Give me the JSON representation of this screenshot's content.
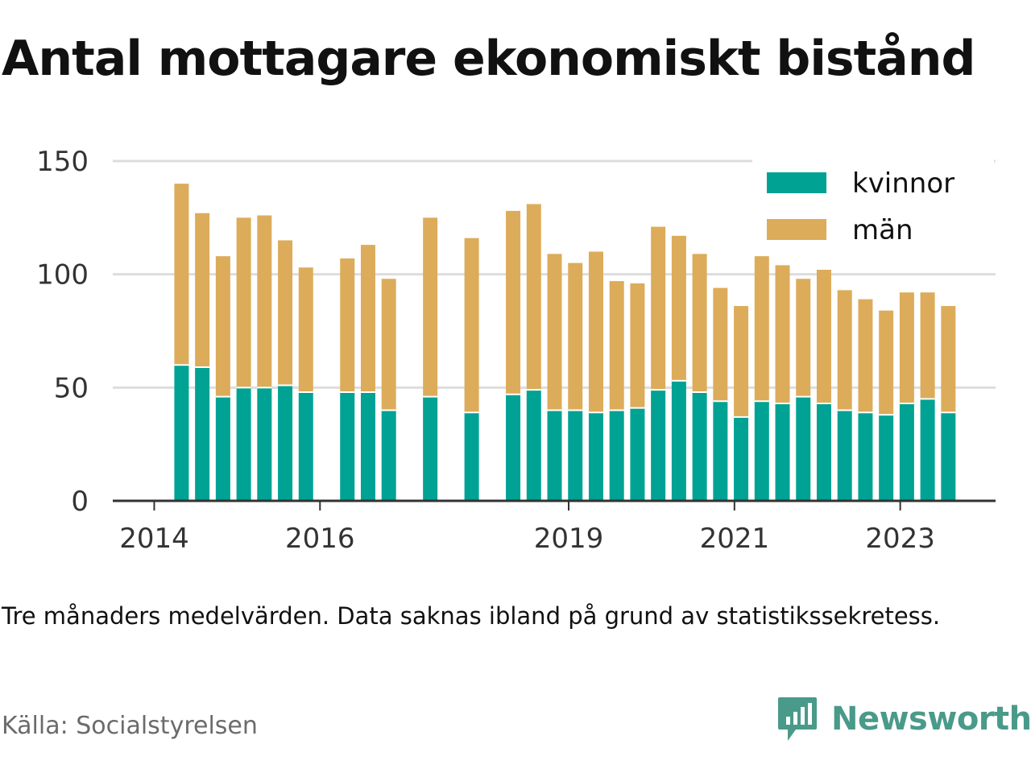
{
  "title": "Antal mottagare ekonomiskt bistånd",
  "note": "Tre månaders medelvärden. Data saknas ibland på grund av statistikssekretess.",
  "source": "Källa: Socialstyrelsen",
  "brand": {
    "name": "Newsworthy",
    "icon": "newsworthy-logo-icon",
    "color": "#4a9a8a"
  },
  "chart_data": {
    "type": "bar",
    "stacked": true,
    "grid": true,
    "legend_position": "top-right",
    "ylim": [
      0,
      150
    ],
    "yticks": [
      0,
      50,
      100,
      150
    ],
    "xticks": [
      {
        "label": "2014",
        "x": 2014.0
      },
      {
        "label": "2016",
        "x": 2016.0
      },
      {
        "label": "2019",
        "x": 2019.0
      },
      {
        "label": "2021",
        "x": 2021.0
      },
      {
        "label": "2023",
        "x": 2023.0
      }
    ],
    "xlim": [
      2013.5,
      2024.15
    ],
    "x": [
      2014.33,
      2014.58,
      2014.83,
      2015.08,
      2015.33,
      2015.58,
      2015.83,
      2016.33,
      2016.58,
      2016.83,
      2017.33,
      2017.83,
      2018.33,
      2018.58,
      2018.83,
      2019.08,
      2019.33,
      2019.58,
      2019.83,
      2020.08,
      2020.33,
      2020.58,
      2020.83,
      2021.08,
      2021.33,
      2021.58,
      2021.83,
      2022.08,
      2022.33,
      2022.58,
      2022.83,
      2023.08,
      2023.33,
      2023.58
    ],
    "series": [
      {
        "name": "kvinnor",
        "color": "#00a294",
        "values": [
          60,
          59,
          46,
          50,
          50,
          51,
          48,
          48,
          48,
          40,
          46,
          39,
          47,
          49,
          40,
          40,
          39,
          40,
          41,
          49,
          53,
          48,
          44,
          37,
          44,
          43,
          46,
          43,
          40,
          39,
          38,
          43,
          45,
          39
        ]
      },
      {
        "name": "män",
        "color": "#dcac5a",
        "values": [
          80,
          68,
          62,
          75,
          76,
          64,
          55,
          59,
          65,
          58,
          79,
          77,
          81,
          82,
          69,
          65,
          71,
          57,
          55,
          72,
          64,
          61,
          50,
          49,
          64,
          61,
          52,
          59,
          53,
          50,
          46,
          49,
          47,
          47
        ]
      }
    ]
  }
}
